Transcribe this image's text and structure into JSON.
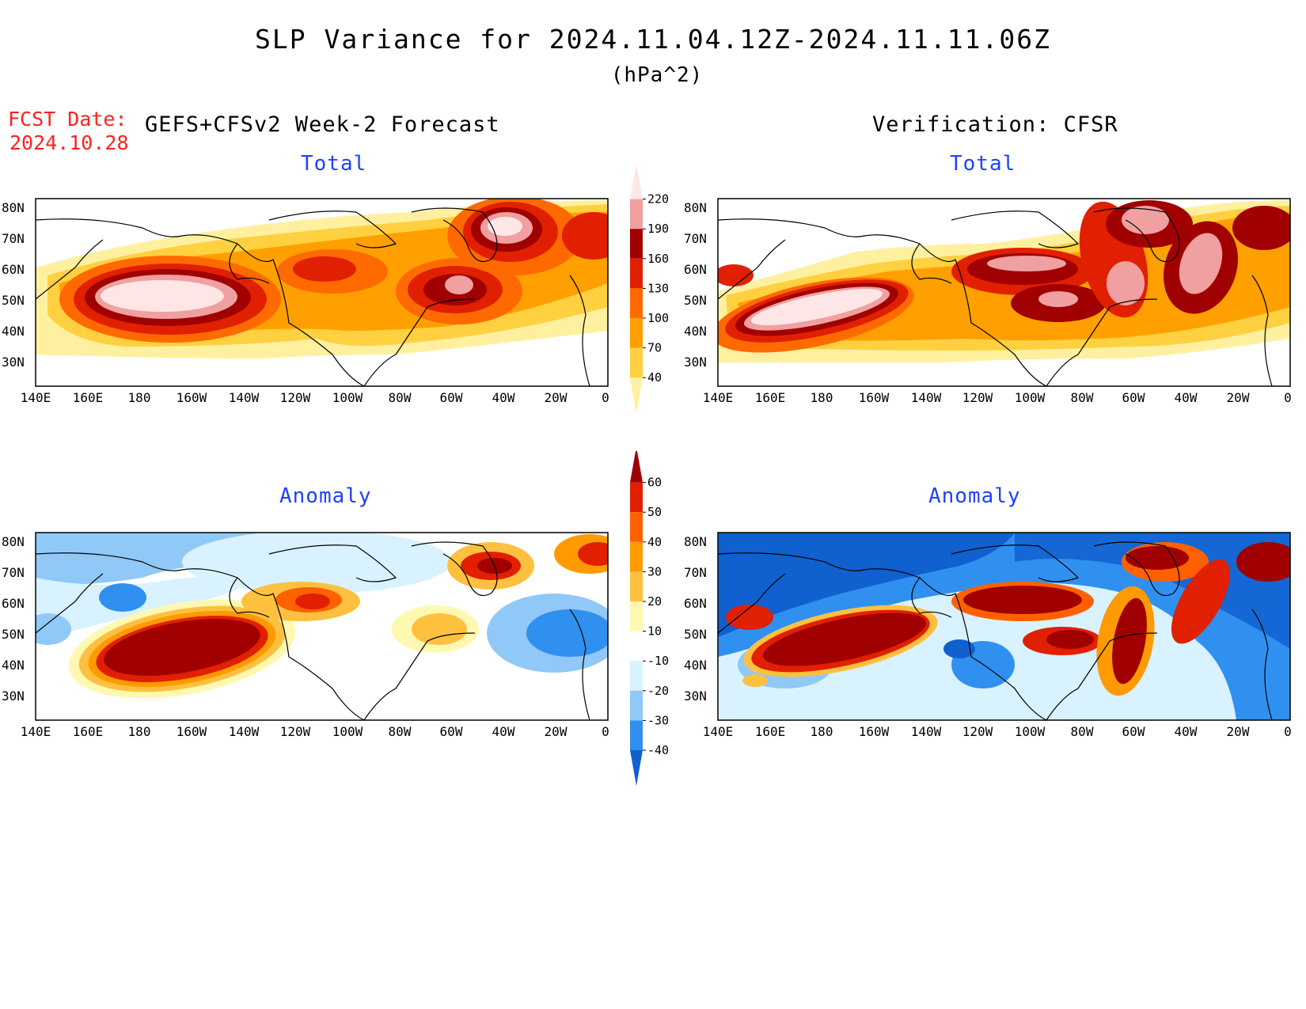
{
  "header": {
    "title": "SLP Variance for 2024.11.04.12Z-2024.11.11.06Z",
    "units": "(hPa^2)",
    "fcst_label": "FCST Date:",
    "fcst_date": "2024.10.28",
    "left_subtitle": "GEFS+CFSv2 Week-2 Forecast",
    "right_subtitle": "Verification: CFSR"
  },
  "panels": {
    "forecast_total": {
      "title": "Total"
    },
    "verif_total": {
      "title": "Total"
    },
    "forecast_anomaly": {
      "title": "Anomaly"
    },
    "verif_anomaly": {
      "title": "Anomaly"
    }
  },
  "axes": {
    "lat_labels": [
      "80N",
      "70N",
      "60N",
      "50N",
      "40N",
      "30N"
    ],
    "lon_labels": [
      "140E",
      "160E",
      "180",
      "160W",
      "140W",
      "120W",
      "100W",
      "80W",
      "60W",
      "40W",
      "20W",
      "0"
    ]
  },
  "colorbars": {
    "total": {
      "levels": [
        "40",
        "70",
        "100",
        "130",
        "160",
        "190",
        "220"
      ],
      "colors": [
        "#fff0a0",
        "#ffd040",
        "#ffa000",
        "#ff6a00",
        "#e02000",
        "#a00000",
        "#f0a0a0",
        "#ffe6e6"
      ]
    },
    "anomaly": {
      "levels": [
        "-40",
        "-30",
        "-20",
        "-10",
        "10",
        "20",
        "30",
        "40",
        "50",
        "60"
      ],
      "colors": [
        "#1060d0",
        "#3090f0",
        "#90c8f8",
        "#d8f2ff",
        "#ffffff",
        "#fff8b0",
        "#ffc040",
        "#ff9a00",
        "#ff6000",
        "#e02000",
        "#a00000"
      ]
    }
  },
  "colors": {
    "title_red": "#ff2020",
    "panel_title_blue": "#2040ff",
    "background": "#ffffff"
  }
}
